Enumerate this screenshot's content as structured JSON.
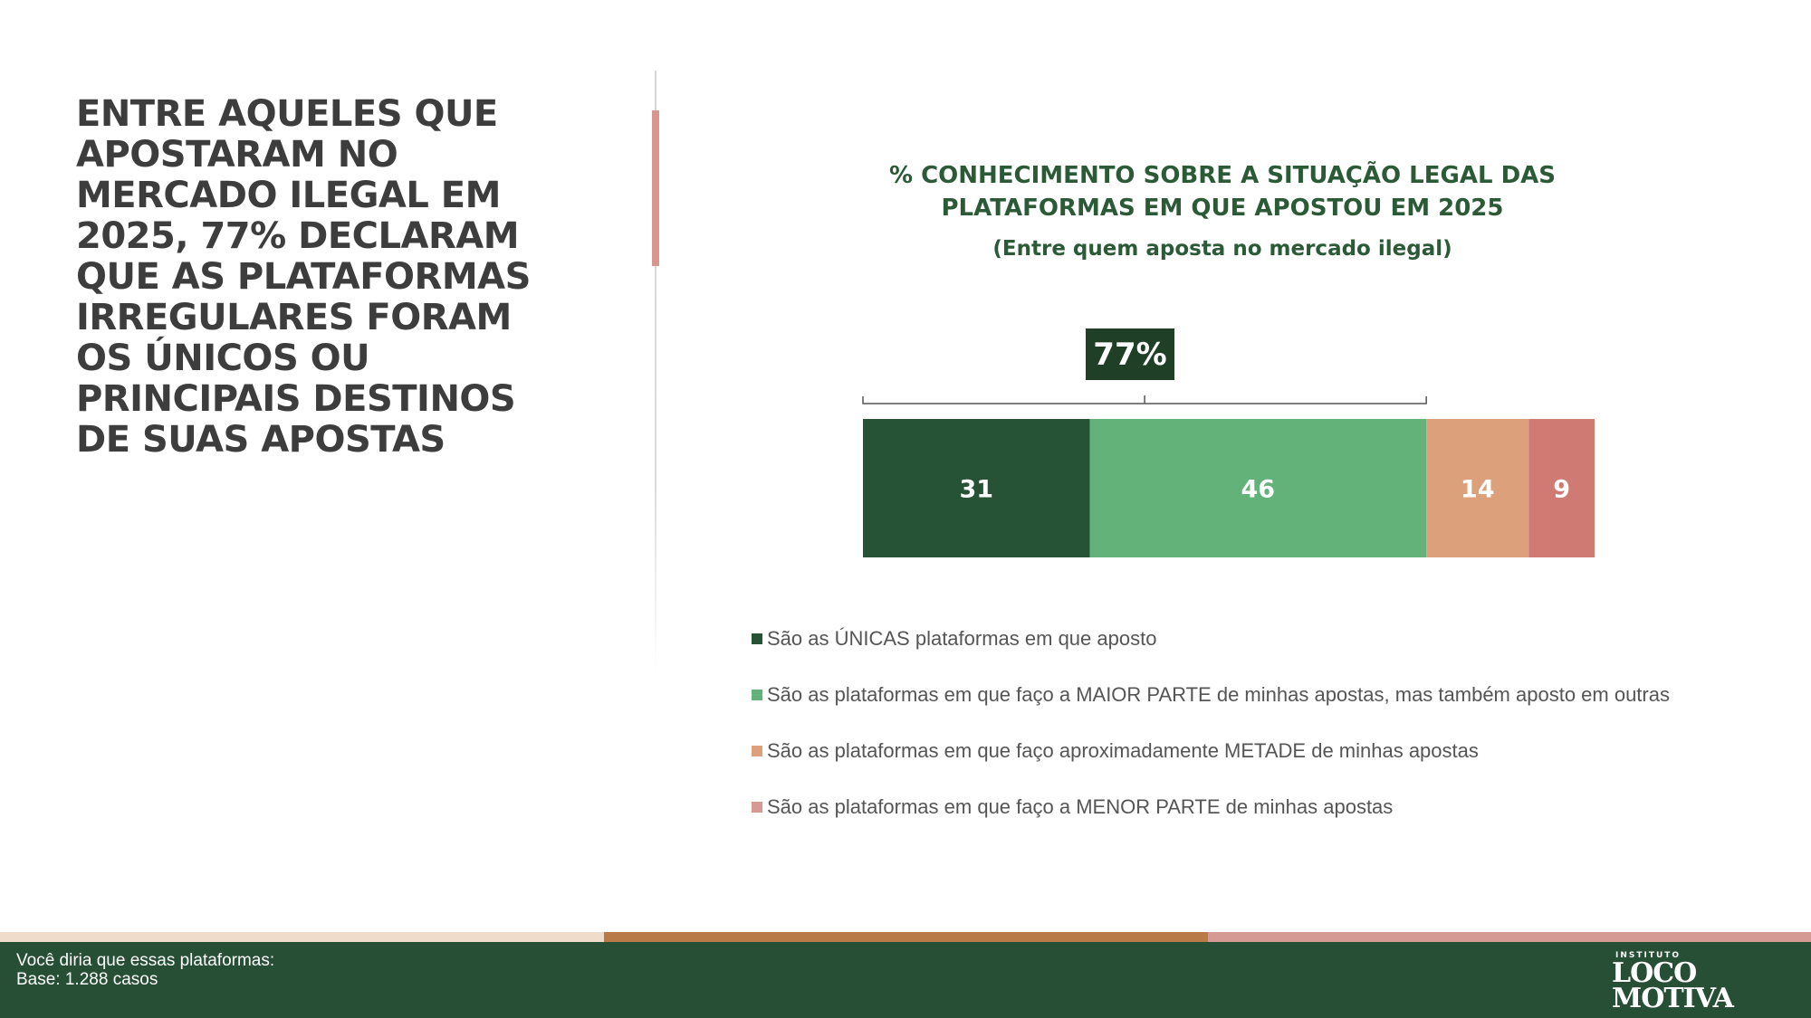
{
  "headline": "ENTRE AQUELES QUE APOSTARAM NO MERCADO ILEGAL EM 2025, 77% DECLARAM QUE AS PLATAFORMAS IRREGULARES FORAM OS ÚNICOS OU PRINCIPAIS DESTINOS DE SUAS APOSTAS",
  "colors": {
    "dark_green": "#265236",
    "light_green": "#62b27a",
    "orange": "#dca07a",
    "pink": "#cf7b73",
    "callout_bg": "#1f3f27",
    "title_color": "#2b5a37",
    "footer_bg": "#264f35",
    "stripe_beige": "#f0dcca",
    "stripe_brown": "#b87a47",
    "stripe_pink": "#d69a94"
  },
  "chart_data": {
    "type": "bar",
    "orientation": "horizontal-stacked",
    "title": "% CONHECIMENTO SOBRE A SITUAÇÃO LEGAL DAS PLATAFORMAS EM QUE APOSTOU EM 2025",
    "subtitle": "(Entre quem aposta no mercado ilegal)",
    "series": [
      {
        "name": "São as ÚNICAS plataformas em que aposto",
        "value": 31,
        "label": "31",
        "color": "#265236"
      },
      {
        "name": "São as plataformas em que faço a MAIOR PARTE de minhas apostas, mas também aposto em outras",
        "value": 46,
        "label": "46",
        "color": "#62b27a"
      },
      {
        "name": "São as plataformas em que faço aproximadamente METADE de minhas apostas",
        "value": 14,
        "label": "14",
        "color": "#dca07a"
      },
      {
        "name": "São as plataformas em que faço a MENOR PARTE de minhas apostas",
        "value": 9,
        "label": "9",
        "color": "#cf7b73"
      }
    ],
    "total": 100,
    "callout": {
      "label": "77%",
      "spans_series": [
        0,
        1
      ]
    },
    "legend_position": "bottom"
  },
  "legend_swatch_colors": [
    "#265236",
    "#62b27a",
    "#dca07a",
    "#d69a94"
  ],
  "footer": {
    "note_line1": "Você diria que essas plataformas:",
    "note_line2": "Base: 1.288 casos"
  },
  "logo": {
    "small_text": "INSTITUTO",
    "line1": "LOCO",
    "line2": "MOTIVA"
  }
}
